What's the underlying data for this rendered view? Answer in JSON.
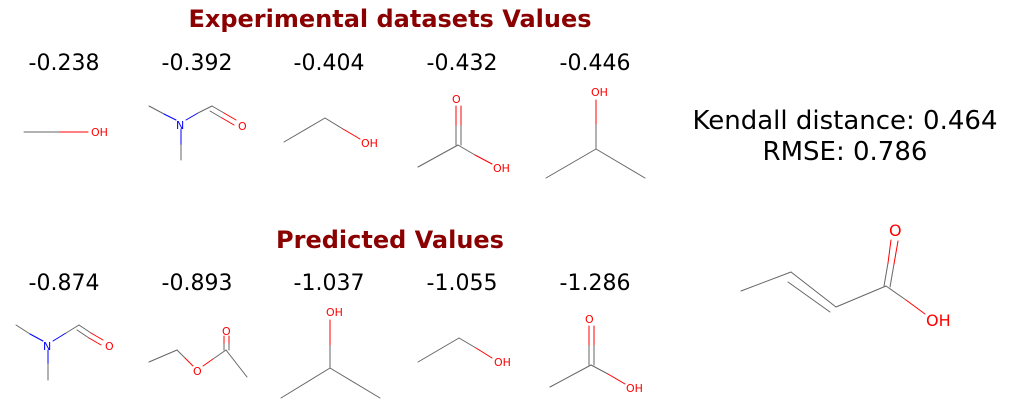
{
  "experimental": {
    "title": "Experimental datasets Values",
    "values": [
      "-0.238",
      "-0.392",
      "-0.404",
      "-0.432",
      "-0.446"
    ]
  },
  "predicted": {
    "title": "Predicted Values",
    "values": [
      "-0.874",
      "-0.893",
      "-1.037",
      "-1.055",
      "-1.286"
    ]
  },
  "metrics": {
    "kendall": "Kendall distance: 0.464",
    "rmse": "RMSE: 0.786"
  },
  "atom_labels": {
    "oh": "OH",
    "o": "O",
    "n": "N"
  },
  "colors": {
    "title": "#8b0000",
    "oxygen": "#ff0000",
    "nitrogen": "#0000ff",
    "bond": "#666666"
  }
}
